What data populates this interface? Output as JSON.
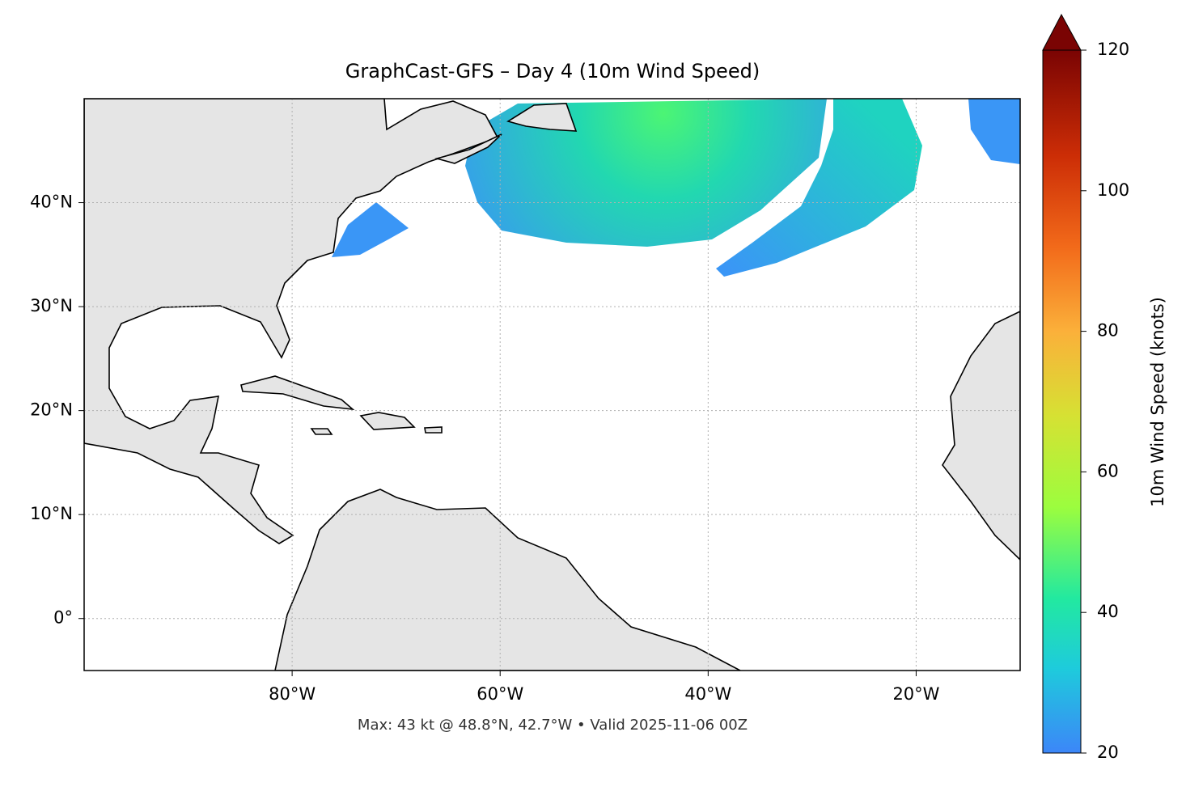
{
  "map": {
    "title": "GraphCast-GFS – Day 4 (10m Wind Speed)",
    "caption": "Max: 43 kt @ 48.8°N, 42.7°W • Valid 2025-11-06 00Z",
    "xlim": [
      -100,
      -10
    ],
    "ylim": [
      -5,
      50
    ],
    "xticks": [
      {
        "value": -80,
        "label": "80°W"
      },
      {
        "value": -60,
        "label": "60°W"
      },
      {
        "value": -40,
        "label": "40°W"
      },
      {
        "value": -20,
        "label": "20°W"
      }
    ],
    "yticks": [
      {
        "value": 0,
        "label": "0°"
      },
      {
        "value": 10,
        "label": "10°N"
      },
      {
        "value": 20,
        "label": "20°N"
      },
      {
        "value": 30,
        "label": "30°N"
      },
      {
        "value": 40,
        "label": "40°N"
      }
    ],
    "grid": true,
    "colorbar": {
      "label": "10m Wind Speed (knots)",
      "lim": [
        20,
        120
      ],
      "ticks": [
        20,
        40,
        60,
        80,
        100,
        120
      ]
    }
  }
}
